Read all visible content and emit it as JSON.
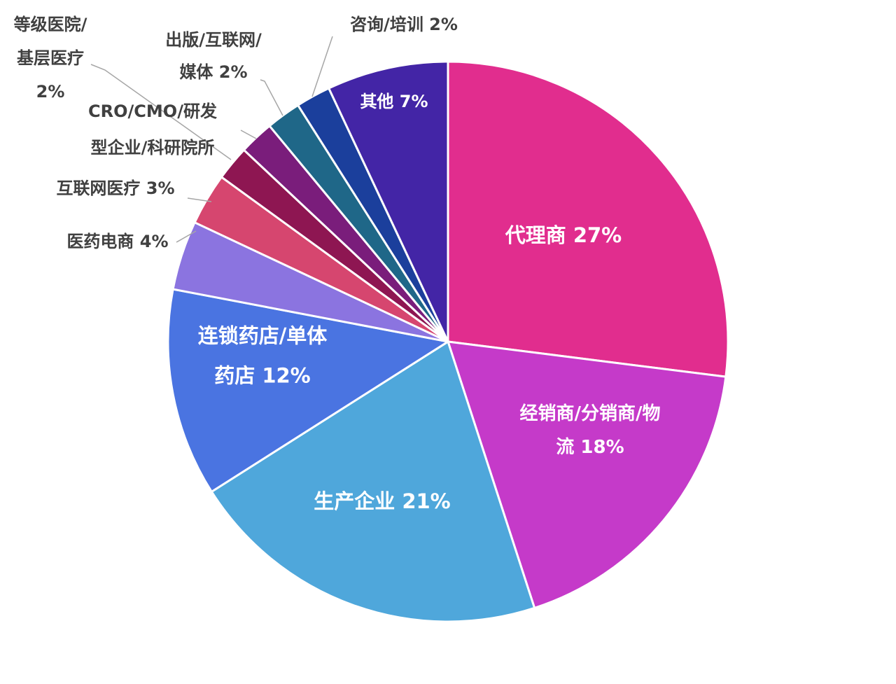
{
  "chart_data": {
    "type": "pie",
    "title": "",
    "start_angle_deg": 0,
    "direction": "clockwise",
    "slices": [
      {
        "label_lines": [
          "代理商 27%"
        ],
        "value": 27,
        "color": "#E12D8E",
        "label_position": "inside"
      },
      {
        "label_lines": [
          "经销商/分销商/物",
          "流 18%"
        ],
        "value": 18,
        "color": "#C53AC9",
        "label_position": "inside"
      },
      {
        "label_lines": [
          "生产企业 21%"
        ],
        "value": 21,
        "color": "#4FA7DB",
        "label_position": "inside"
      },
      {
        "label_lines": [
          "连锁药店/单体",
          "药店 12%"
        ],
        "value": 12,
        "color": "#4A74E1",
        "label_position": "inside"
      },
      {
        "label_lines": [
          "医药电商 4%"
        ],
        "value": 4,
        "color": "#8B74E0",
        "label_position": "outside"
      },
      {
        "label_lines": [
          "互联网医疗 3%"
        ],
        "value": 3,
        "color": "#D6466F",
        "label_position": "outside"
      },
      {
        "label_lines": [
          "等级医院/",
          "基层医疗",
          "2%"
        ],
        "value": 2,
        "color": "#8E1652",
        "label_position": "outside"
      },
      {
        "label_lines": [
          "CRO/CMO/研发",
          "型企业/科研院所"
        ],
        "value": 2,
        "color": "#7A1D7B",
        "label_position": "outside"
      },
      {
        "label_lines": [
          "出版/互联网/",
          "媒体 2%"
        ],
        "value": 2,
        "color": "#1F6788",
        "label_position": "outside"
      },
      {
        "label_lines": [
          "咨询/培训 2%"
        ],
        "value": 2,
        "color": "#1B3F9C",
        "label_position": "outside"
      },
      {
        "label_lines": [
          "其他 7%"
        ],
        "value": 7,
        "color": "#4325A6",
        "label_position": "inside"
      }
    ]
  }
}
